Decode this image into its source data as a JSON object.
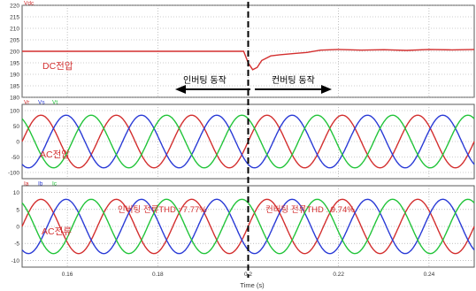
{
  "chart_data": [
    {
      "type": "line",
      "panel_label": "DC전압",
      "legend": [
        "Vdc"
      ],
      "ylim": [
        180,
        220
      ],
      "yticks": [
        180,
        185,
        190,
        195,
        200,
        205,
        210,
        215,
        220
      ],
      "annotations": [
        "인버팅 동작",
        "컨버팅 동작"
      ],
      "series": [
        {
          "name": "Vdc",
          "color": "#d32f2f",
          "x": [
            0.15,
            0.16,
            0.17,
            0.18,
            0.19,
            0.199,
            0.2,
            0.201,
            0.202,
            0.203,
            0.205,
            0.207,
            0.21,
            0.213,
            0.216,
            0.22,
            0.225,
            0.23,
            0.235,
            0.24,
            0.245,
            0.25
          ],
          "y": [
            200,
            200,
            200,
            200,
            200,
            200,
            195,
            192,
            193,
            196,
            198,
            198.5,
            199,
            199.5,
            200.5,
            200.8,
            200.5,
            200.7,
            200.4,
            200.8,
            200.6,
            200.8
          ]
        }
      ]
    },
    {
      "type": "line",
      "panel_label": "AC전압",
      "legend": [
        "Vr",
        "Vs",
        "Vt"
      ],
      "ylim": [
        -120,
        120
      ],
      "yticks": [
        -100,
        -50,
        0,
        50,
        100
      ],
      "amplitude": 85,
      "frequency_hz": 60,
      "series": [
        {
          "name": "Vr",
          "color": "#d32f2f",
          "phase_deg": 0
        },
        {
          "name": "Vs",
          "color": "#2a3bd6",
          "phase_deg": -120
        },
        {
          "name": "Vt",
          "color": "#22c43a",
          "phase_deg": 120
        }
      ]
    },
    {
      "type": "line",
      "panel_label": "AC전류",
      "legend": [
        "Ia",
        "Ib",
        "Ic"
      ],
      "ylim": [
        -12,
        12
      ],
      "yticks": [
        -10,
        -5,
        0,
        5,
        10
      ],
      "annotations": [
        "인버팅 전류THD : 7.77%",
        "컨버팅 전류THD : 9.74%"
      ],
      "amplitude": 8,
      "frequency_hz": 60,
      "series": [
        {
          "name": "Ia",
          "color": "#d32f2f",
          "phase_deg": 0
        },
        {
          "name": "Ib",
          "color": "#2a3bd6",
          "phase_deg": -120
        },
        {
          "name": "Ic",
          "color": "#22c43a",
          "phase_deg": 120
        }
      ]
    }
  ],
  "x_axis": {
    "label": "Time (s)",
    "xlim": [
      0.15,
      0.25
    ],
    "ticks": [
      0.16,
      0.18,
      0.2,
      0.22,
      0.24
    ],
    "event_time": 0.2
  },
  "colors": {
    "grid": "#9a9a9a",
    "frame": "#5a5a5a",
    "annotation": "#d32f2f",
    "arrow": "#000000"
  }
}
